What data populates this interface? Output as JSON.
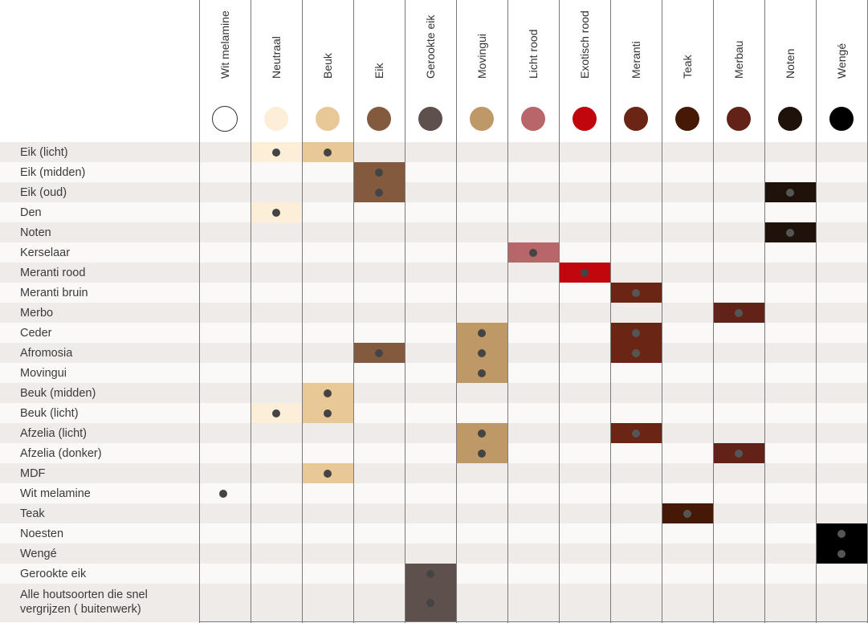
{
  "columns": [
    {
      "label": "Wit melamine",
      "color": "#ffffff",
      "border": "#333333"
    },
    {
      "label": "Neutraal",
      "color": "#fdeed8"
    },
    {
      "label": "Beuk",
      "color": "#e8c896"
    },
    {
      "label": "Eik",
      "color": "#835a3e"
    },
    {
      "label": "Gerookte eik",
      "color": "#5d504d"
    },
    {
      "label": "Movingui",
      "color": "#bf9965"
    },
    {
      "label": "Licht rood",
      "color": "#b8666a"
    },
    {
      "label": "Exotisch rood",
      "color": "#c1060d"
    },
    {
      "label": "Meranti",
      "color": "#6b2514"
    },
    {
      "label": "Teak",
      "color": "#461806"
    },
    {
      "label": "Merbau",
      "color": "#632217"
    },
    {
      "label": "Noten",
      "color": "#1e120a"
    },
    {
      "label": "Wengé",
      "color": "#000000"
    }
  ],
  "rows": [
    {
      "label": "Eik (licht)",
      "marks": [
        1,
        2
      ]
    },
    {
      "label": "Eik (midden)",
      "marks": [
        3
      ]
    },
    {
      "label": "Eik (oud)",
      "marks": [
        3,
        11
      ]
    },
    {
      "label": "Den",
      "marks": [
        1
      ]
    },
    {
      "label": "Noten",
      "marks": [
        11
      ]
    },
    {
      "label": "Kerselaar",
      "marks": [
        6
      ]
    },
    {
      "label": "Meranti rood",
      "marks": [
        7
      ]
    },
    {
      "label": "Meranti bruin",
      "marks": [
        8
      ]
    },
    {
      "label": "Merbo",
      "marks": [
        10
      ]
    },
    {
      "label": "Ceder",
      "marks": [
        5,
        8
      ]
    },
    {
      "label": "Afromosia",
      "marks": [
        3,
        5,
        8
      ]
    },
    {
      "label": "Movingui",
      "marks": [
        5
      ]
    },
    {
      "label": "Beuk (midden)",
      "marks": [
        2
      ]
    },
    {
      "label": "Beuk (licht)",
      "marks": [
        1,
        2
      ]
    },
    {
      "label": "Afzelia (licht)",
      "marks": [
        5,
        8
      ]
    },
    {
      "label": "Afzelia (donker)",
      "marks": [
        5,
        10
      ]
    },
    {
      "label": "MDF",
      "marks": [
        2
      ]
    },
    {
      "label": "Wit melamine",
      "marks": [
        0
      ]
    },
    {
      "label": "Teak",
      "marks": [
        9
      ]
    },
    {
      "label": "Noesten",
      "marks": [
        12
      ]
    },
    {
      "label": "Wengé",
      "marks": [
        12
      ]
    },
    {
      "label": "Gerookte eik",
      "marks": [
        4
      ]
    },
    {
      "label": "Alle houtsoorten die snel vergrijzen ( buitenwerk)",
      "marks": [
        4
      ],
      "tall": true
    }
  ]
}
